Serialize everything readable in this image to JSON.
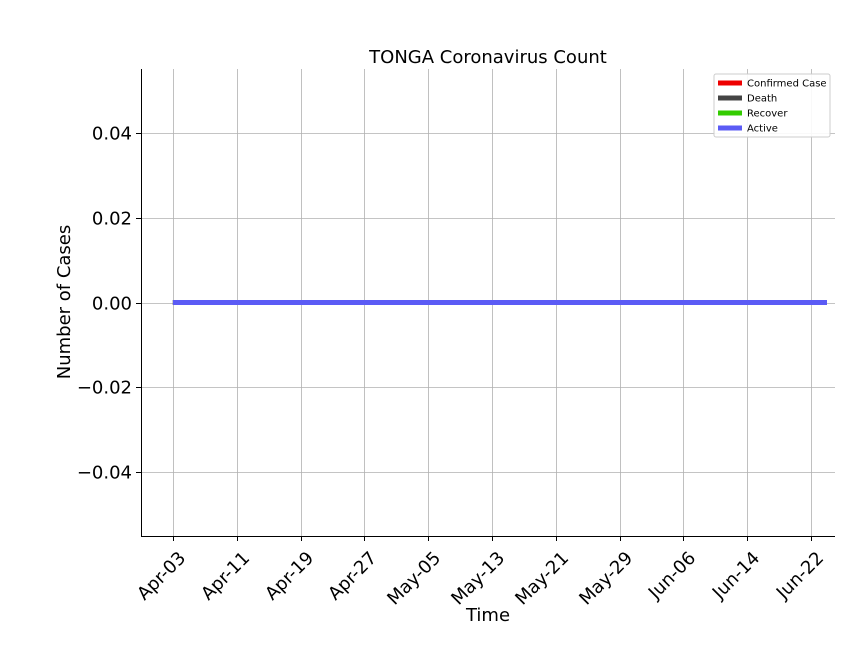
{
  "chart_data": {
    "type": "line",
    "title": "TONGA Coronavirus Count",
    "xlabel": "Time",
    "ylabel": "Number of Cases",
    "x_start": "2020-03-30",
    "x_end": "2020-06-25",
    "x_ticks": [
      "Apr-03",
      "Apr-11",
      "Apr-19",
      "Apr-27",
      "May-05",
      "May-13",
      "May-21",
      "May-29",
      "Jun-06",
      "Jun-14",
      "Jun-22"
    ],
    "x_tick_dates": [
      "2020-04-03",
      "2020-04-11",
      "2020-04-19",
      "2020-04-27",
      "2020-05-05",
      "2020-05-13",
      "2020-05-21",
      "2020-05-29",
      "2020-06-06",
      "2020-06-14",
      "2020-06-22"
    ],
    "ylim": [
      -0.055,
      0.055
    ],
    "y_ticks": [
      0.04,
      0.02,
      0.0,
      -0.02,
      -0.04
    ],
    "y_tick_labels": [
      "0.04",
      "0.02",
      "0.00",
      "−0.02",
      "−0.04"
    ],
    "grid": true,
    "legend_position": "top-right",
    "series": [
      {
        "name": "Confirmed Case",
        "color": "#ee0000",
        "x_start": "2020-04-03",
        "x_end": "2020-06-24",
        "values": [
          0,
          0
        ]
      },
      {
        "name": "Death",
        "color": "#444444",
        "x_start": "2020-04-03",
        "x_end": "2020-06-24",
        "values": [
          0,
          0
        ]
      },
      {
        "name": "Recover",
        "color": "#33cc00",
        "x_start": "2020-04-03",
        "x_end": "2020-06-24",
        "values": [
          0,
          0
        ]
      },
      {
        "name": "Active",
        "color": "#5b5bf5",
        "x_start": "2020-04-03",
        "x_end": "2020-06-24",
        "values": [
          0,
          0
        ]
      }
    ]
  }
}
